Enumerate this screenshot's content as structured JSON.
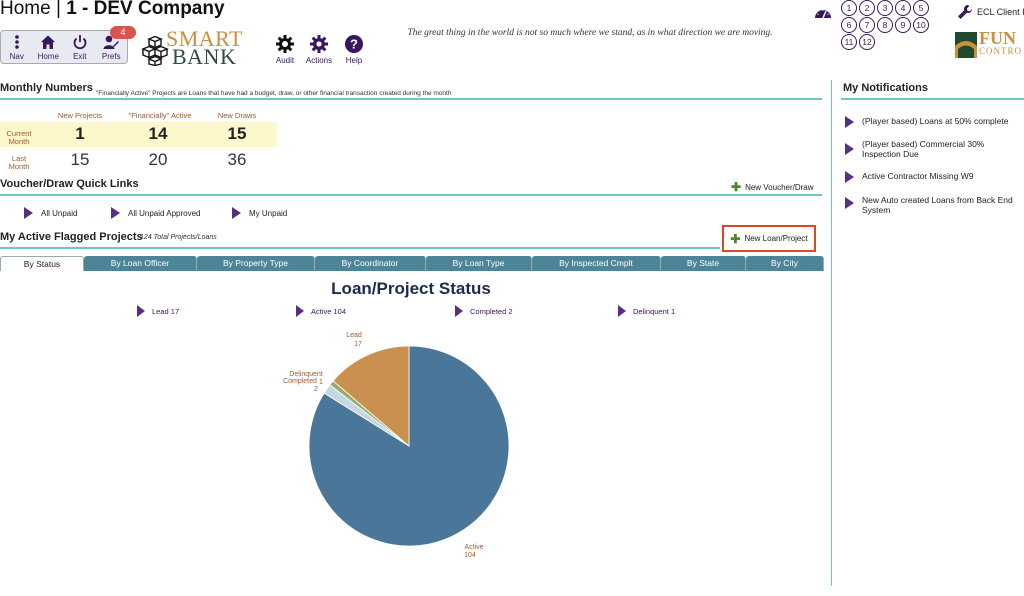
{
  "header": {
    "home_label": "Home",
    "separator": "|",
    "company": "1 - DEV Company",
    "quote": "The great thing in the world is not so much where we stand, as in what direction we are moving."
  },
  "toolbar": {
    "nav": "Nav",
    "home": "Home",
    "exit": "Exit",
    "prefs": "Prefs",
    "prefs_badge": "4"
  },
  "logo": {
    "line1": "SMART",
    "line2": "BANK"
  },
  "actions": {
    "audit": "Audit",
    "actions": "Actions",
    "help": "Help"
  },
  "top_right": {
    "numbers": [
      "1",
      "2",
      "3",
      "4",
      "5",
      "6",
      "7",
      "8",
      "9",
      "10",
      "11",
      "12"
    ],
    "client_link": "ECL Client In",
    "fund_logo_line1": "FUN",
    "fund_logo_line2": "CONTRO"
  },
  "monthly": {
    "title": "Monthly Numbers",
    "note": "\"Financially Active\" Projects are Loans that have had a budget, draw, or other financial transaction created during the month",
    "headers": [
      "New Projects",
      "\"Financially\" Active",
      "New Draws"
    ],
    "current_label_1": "Current",
    "current_label_2": "Month",
    "last_label_1": "Last",
    "last_label_2": "Month",
    "current_values": [
      "1",
      "14",
      "15"
    ],
    "last_values": [
      "15",
      "20",
      "36"
    ]
  },
  "quick_links": {
    "title": "Voucher/Draw Quick Links",
    "new_voucher": "New Voucher/Draw",
    "items": [
      "All Unpaid",
      "All Unpaid Approved",
      "My Unpaid"
    ]
  },
  "flagged": {
    "title": "My Active Flagged Projects",
    "total": "124 Total Projects/Loans",
    "new_loan": "New Loan/Project"
  },
  "tabs": [
    "By Status",
    "By Loan Officer",
    "By Property Type",
    "By Coordinator",
    "By Loan Type",
    "By Inspected Cmplt",
    "By State",
    "By City"
  ],
  "chart_data": {
    "type": "pie",
    "title": "Loan/Project Status",
    "legend": [
      "Lead 17",
      "Active 104",
      "Completed 2",
      "Delinquent 1"
    ],
    "slices": [
      {
        "name": "Lead",
        "value": 17,
        "color": "#c9904f"
      },
      {
        "name": "Active",
        "value": 104,
        "color": "#4a7799"
      },
      {
        "name": "Completed",
        "value": 2,
        "color": "#c5d8e2"
      },
      {
        "name": "Delinquent",
        "value": 1,
        "color": "#9aaa6a"
      }
    ],
    "labels": {
      "lead_name": "Lead",
      "lead_value": "17",
      "active_name": "Active",
      "active_value": "104",
      "completed_name": "Completed",
      "completed_value": "2",
      "delinquent_name": "Delinquent",
      "delinquent_value": "1"
    }
  },
  "notifications": {
    "title": "My Notifications",
    "items": [
      "(Player based) Loans at 50% complete",
      "(Player based) Commercial 30% Inspection Due",
      "Active Contractor Missing W9",
      "New Auto created Loans from Back End System"
    ]
  },
  "colors": {
    "accent_rule": "#6cc7c5",
    "tab_bg": "#4e8497",
    "brand_purple": "#5a2d82",
    "highlight_box": "#d94a2b"
  }
}
